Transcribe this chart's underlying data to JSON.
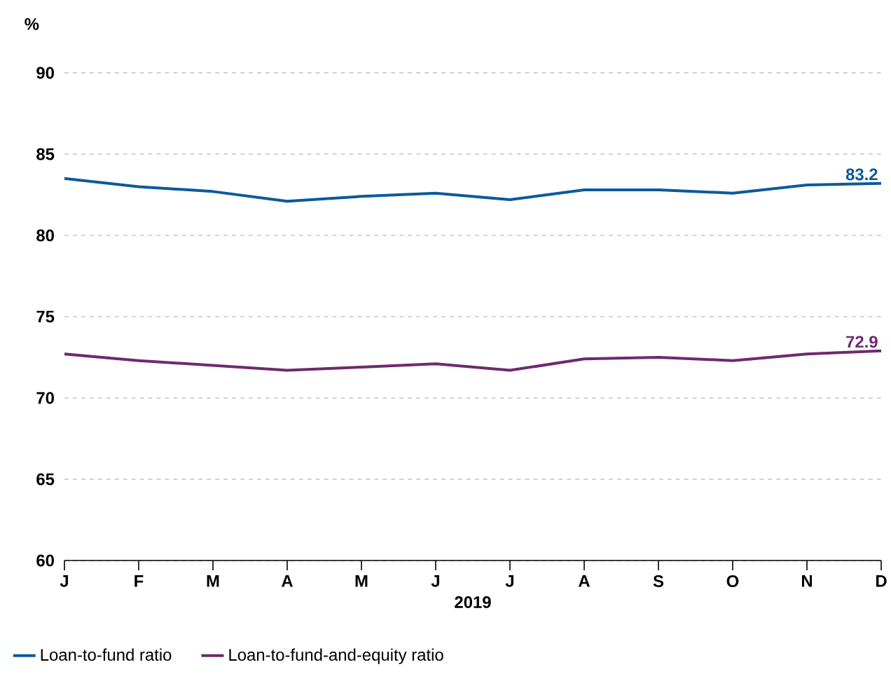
{
  "chart_data": {
    "type": "line",
    "ylabel": "%",
    "xlabel": "2019",
    "categories": [
      "J",
      "F",
      "M",
      "A",
      "M",
      "J",
      "J",
      "A",
      "S",
      "O",
      "N",
      "D"
    ],
    "series": [
      {
        "name": "Loan-to-fund ratio",
        "color": "#0b5a9c",
        "values": [
          83.5,
          83.0,
          82.7,
          82.1,
          82.4,
          82.6,
          82.2,
          82.8,
          82.8,
          82.6,
          83.1,
          83.2
        ]
      },
      {
        "name": "Loan-to-fund-and-equity ratio",
        "color": "#6e2a6e",
        "values": [
          72.7,
          72.3,
          72.0,
          71.7,
          71.9,
          72.1,
          71.7,
          72.4,
          72.5,
          72.3,
          72.7,
          72.9
        ]
      }
    ],
    "annotations": [
      {
        "text": "83.2",
        "x": "D",
        "y": 83.2
      },
      {
        "text": "72.9",
        "x": "D",
        "y": 72.9
      }
    ],
    "ylim": [
      60,
      90
    ],
    "yticks": [
      60,
      65,
      70,
      75,
      80,
      85,
      90
    ],
    "grid": "y",
    "legend": "bottom",
    "marker": "none",
    "line_style": "solid"
  }
}
